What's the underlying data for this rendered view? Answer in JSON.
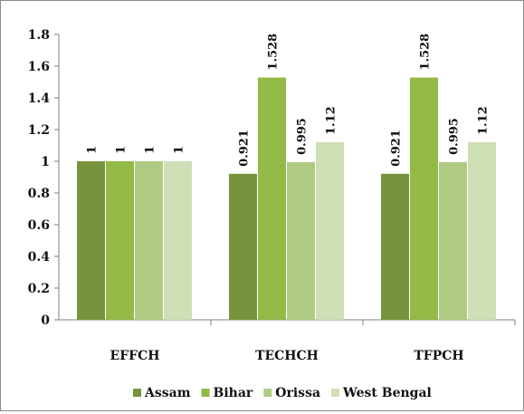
{
  "chart_data": {
    "type": "bar",
    "title": "",
    "xlabel": "",
    "ylabel": "",
    "categories": [
      "EFFCH",
      "TECHCH",
      "TFPCH"
    ],
    "series": [
      {
        "name": "Assam",
        "values": [
          1,
          0.921,
          0.921
        ],
        "labels": [
          "1",
          "0.921",
          "0.921"
        ],
        "color": "#77933c"
      },
      {
        "name": "Bihar",
        "values": [
          1,
          1.528,
          1.528
        ],
        "labels": [
          "1",
          "1.528",
          "1.528"
        ],
        "color": "#93b946"
      },
      {
        "name": "Orissa",
        "values": [
          1,
          0.995,
          0.995
        ],
        "labels": [
          "1",
          "0.995",
          "0.995"
        ],
        "color": "#afcb83"
      },
      {
        "name": "West Bengal",
        "values": [
          1,
          1.12,
          1.12
        ],
        "labels": [
          "1",
          "1.12",
          "1.12"
        ],
        "color": "#cfdfb5"
      }
    ],
    "ylim": [
      0,
      1.8
    ],
    "yticks": [
      "0",
      "0.2",
      "0.4",
      "0.6",
      "0.8",
      "1",
      "1.2",
      "1.4",
      "1.6",
      "1.8"
    ],
    "grid": false,
    "legend_position": "bottom"
  }
}
